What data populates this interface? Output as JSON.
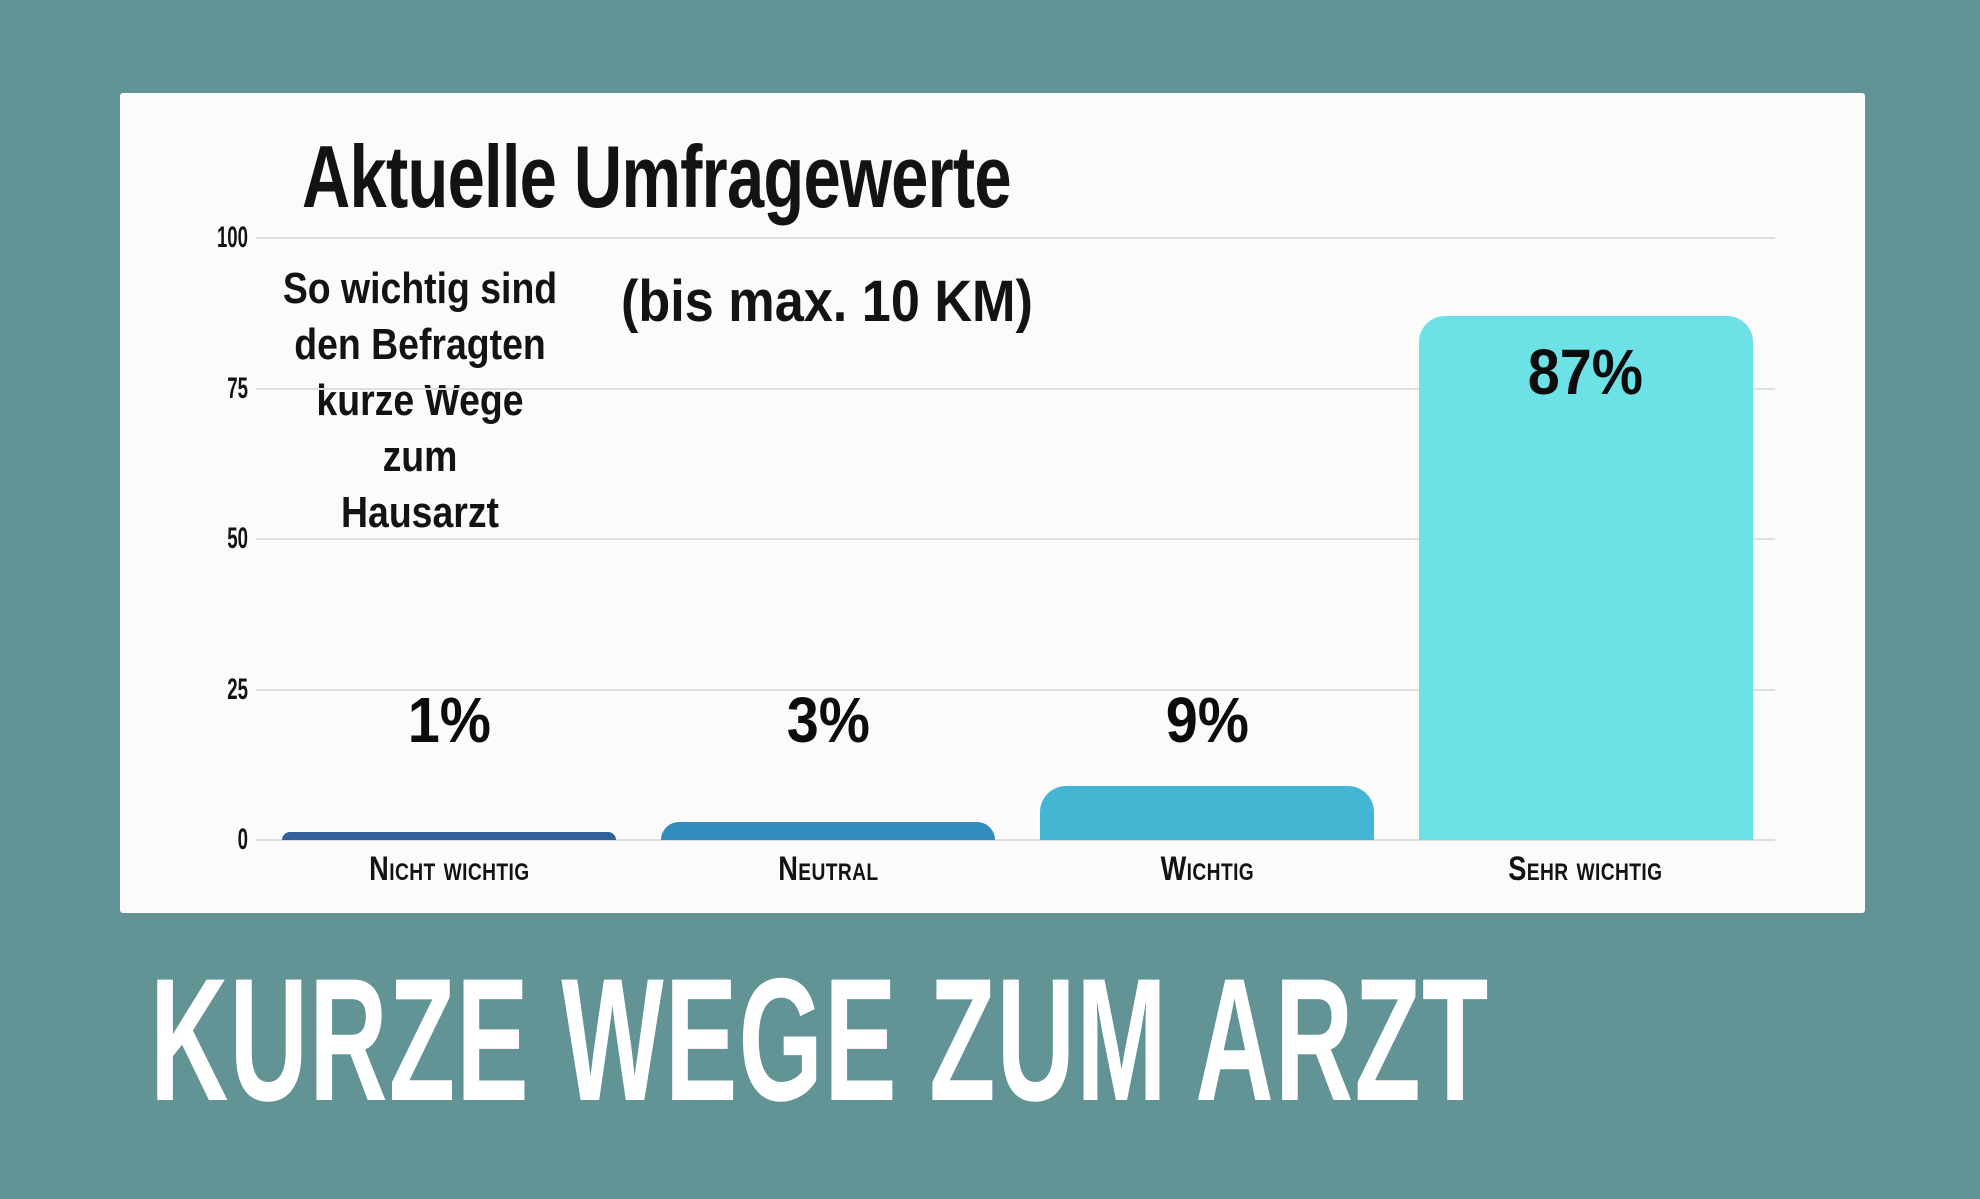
{
  "banner": {
    "text": "KURZE WEGE ZUM ARZT"
  },
  "chart_data": {
    "type": "bar",
    "title": "Aktuelle Umfragewerte",
    "subtitle": "So wichtig sind\nden Befragten\nkurze Wege zum\nHausarzt",
    "note": "(bis max. 10 KM)",
    "categories": [
      "Nicht wichtig",
      "Neutral",
      "Wichtig",
      "Sehr wichtig"
    ],
    "values": [
      1,
      3,
      9,
      87
    ],
    "value_labels": [
      "1%",
      "3%",
      "9%",
      "87%"
    ],
    "bar_colors": [
      "#31609A",
      "#2F8CBD",
      "#43B6D4",
      "#6CE1E6"
    ],
    "xlabel": "",
    "ylabel": "",
    "ylim": [
      0,
      100
    ],
    "yticks": [
      0,
      25,
      50,
      75,
      100
    ],
    "grid": true,
    "legend": false
  },
  "colors": {
    "background": "#639495",
    "card": "#FBFBFB",
    "gridline": "#DEDEDE",
    "text": "#131313",
    "banner_text": "#FFFFFF"
  }
}
